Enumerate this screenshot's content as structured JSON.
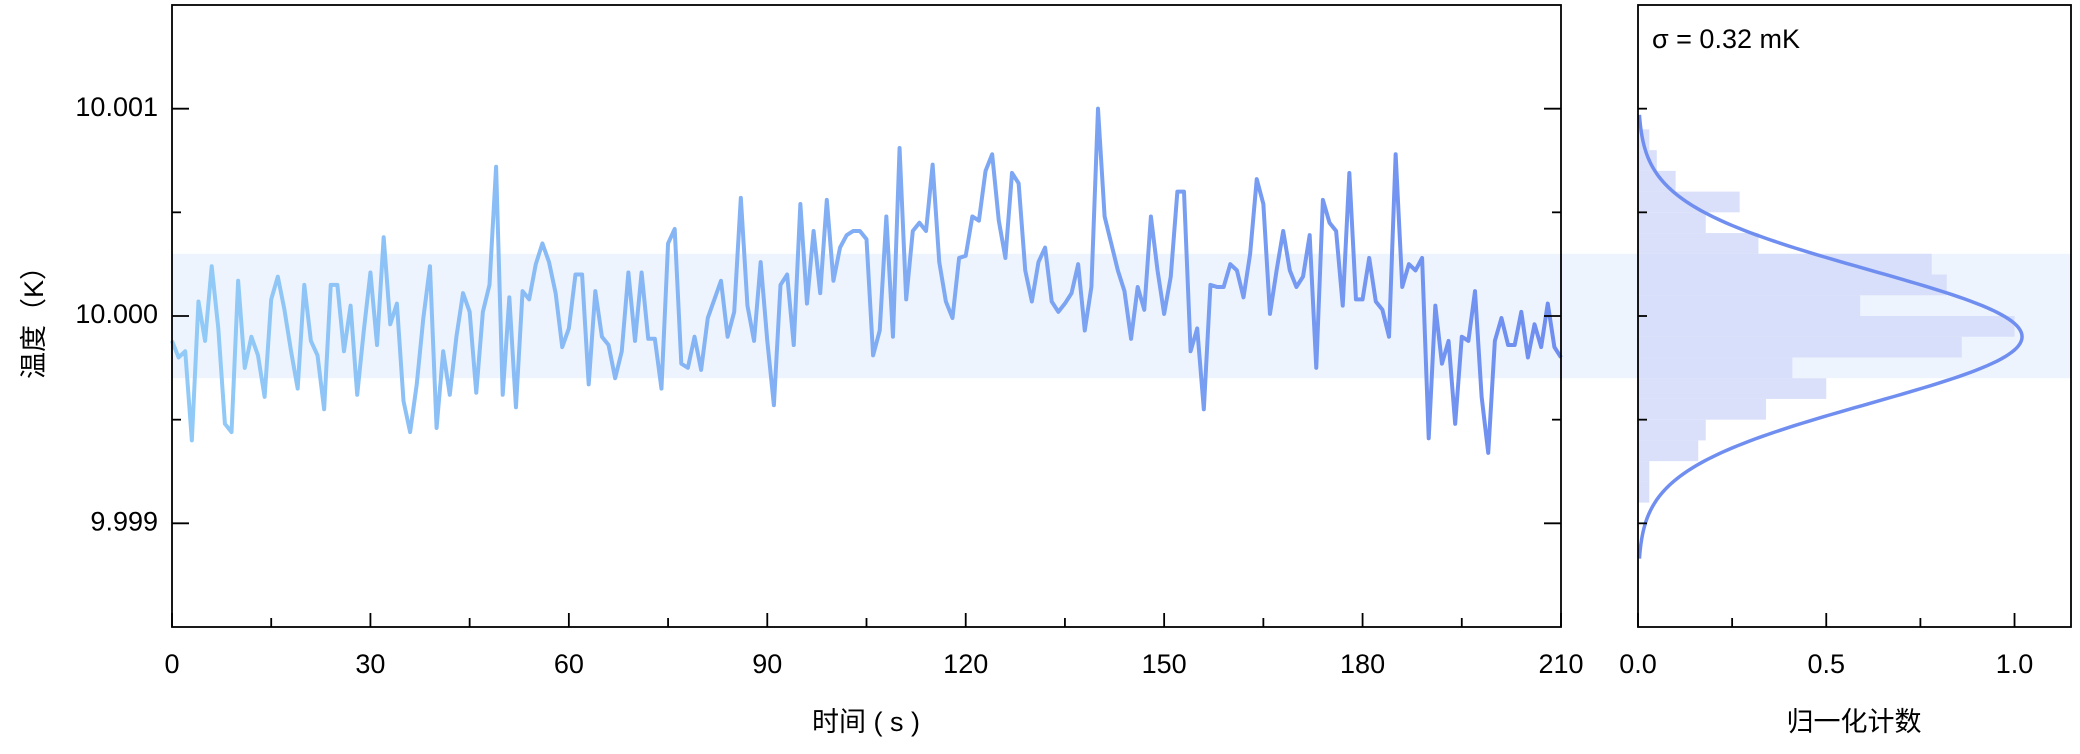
{
  "chart_data": [
    {
      "type": "line",
      "x_label": "时间 ( s )",
      "y_label": "温度（K）",
      "x": [
        0,
        1,
        2,
        3,
        4,
        5,
        6,
        7,
        8,
        9,
        10,
        11,
        12,
        13,
        14,
        15,
        16,
        17,
        18,
        19,
        20,
        21,
        22,
        23,
        24,
        25,
        26,
        27,
        28,
        29,
        30,
        31,
        32,
        33,
        34,
        35,
        36,
        37,
        38,
        39,
        40,
        41,
        42,
        43,
        44,
        45,
        46,
        47,
        48,
        49,
        50,
        51,
        52,
        53,
        54,
        55,
        56,
        57,
        58,
        59,
        60,
        61,
        62,
        63,
        64,
        65,
        66,
        67,
        68,
        69,
        70,
        71,
        72,
        73,
        74,
        75,
        76,
        77,
        78,
        79,
        80,
        81,
        82,
        83,
        84,
        85,
        86,
        87,
        88,
        89,
        90,
        91,
        92,
        93,
        94,
        95,
        96,
        97,
        98,
        99,
        100,
        101,
        102,
        103,
        104,
        105,
        106,
        107,
        108,
        109,
        110,
        111,
        112,
        113,
        114,
        115,
        116,
        117,
        118,
        119,
        120,
        121,
        122,
        123,
        124,
        125,
        126,
        127,
        128,
        129,
        130,
        131,
        132,
        133,
        134,
        135,
        136,
        137,
        138,
        139,
        140,
        141,
        142,
        143,
        144,
        145,
        146,
        147,
        148,
        149,
        150,
        151,
        152,
        153,
        154,
        155,
        156,
        157,
        158,
        159,
        160,
        161,
        162,
        163,
        164,
        165,
        166,
        167,
        168,
        169,
        170,
        171,
        172,
        173,
        174,
        175,
        176,
        177,
        178,
        179,
        180,
        181,
        182,
        183,
        184,
        185,
        186,
        187,
        188,
        189,
        190,
        191,
        192,
        193,
        194,
        195,
        196,
        197,
        198,
        199,
        200,
        201,
        202,
        203,
        204,
        205,
        206,
        207,
        208,
        209,
        210
      ],
      "values": [
        9.99988,
        9.9998,
        9.99983,
        9.9994,
        10.00007,
        9.99988,
        10.00024,
        9.99994,
        9.99948,
        9.99944,
        10.00017,
        9.99975,
        9.9999,
        9.99981,
        9.99961,
        10.00008,
        10.00019,
        10.00003,
        9.99983,
        9.99965,
        10.00015,
        9.99988,
        9.99981,
        9.99955,
        10.00015,
        10.00015,
        9.99983,
        10.00005,
        9.99962,
        9.99993,
        10.00021,
        9.99986,
        10.00038,
        9.99996,
        10.00006,
        9.99959,
        9.99944,
        9.99967,
        9.99999,
        10.00024,
        9.99946,
        9.99983,
        9.99962,
        9.9999,
        10.00011,
        10.00002,
        9.99963,
        10.00002,
        10.00015,
        10.00072,
        9.99962,
        10.00009,
        9.99956,
        10.00012,
        10.00008,
        10.00025,
        10.00035,
        10.00026,
        10.00011,
        9.99985,
        9.99994,
        10.0002,
        10.0002,
        9.99967,
        10.00012,
        9.9999,
        9.99986,
        9.9997,
        9.99983,
        10.00021,
        9.99988,
        10.00021,
        9.99989,
        9.99989,
        9.99965,
        10.00035,
        10.00042,
        9.99977,
        9.99975,
        9.9999,
        9.99974,
        9.99999,
        10.00008,
        10.00017,
        9.9999,
        10.00002,
        10.00057,
        10.00005,
        9.99988,
        10.00026,
        9.99988,
        9.99957,
        10.00015,
        10.0002,
        9.99986,
        10.00054,
        10.00006,
        10.00041,
        10.00011,
        10.00056,
        10.00017,
        10.00033,
        10.00039,
        10.00041,
        10.00041,
        10.00037,
        9.99981,
        9.99993,
        10.00048,
        9.9999,
        10.00081,
        10.00008,
        10.00041,
        10.00045,
        10.00041,
        10.00073,
        10.00026,
        10.00007,
        9.99999,
        10.00028,
        10.00029,
        10.00048,
        10.00046,
        10.0007,
        10.00078,
        10.00046,
        10.00028,
        10.00069,
        10.00064,
        10.00022,
        10.00007,
        10.00026,
        10.00033,
        10.00007,
        10.00002,
        10.00006,
        10.00011,
        10.00025,
        9.99993,
        10.00014,
        10.001,
        10.00048,
        10.00035,
        10.00022,
        10.00012,
        9.99989,
        10.00014,
        10.00003,
        10.00048,
        10.00022,
        10.00001,
        10.00019,
        10.0006,
        10.0006,
        9.99983,
        9.99994,
        9.99955,
        10.00015,
        10.00014,
        10.00014,
        10.00025,
        10.00022,
        10.00009,
        10.0003,
        10.00066,
        10.00054,
        10.00001,
        10.00022,
        10.00041,
        10.00022,
        10.00014,
        10.00019,
        10.00039,
        9.99975,
        10.00056,
        10.00045,
        10.00041,
        10.00005,
        10.00069,
        10.00008,
        10.00008,
        10.00028,
        10.00007,
        10.00003,
        9.9999,
        10.00078,
        10.00014,
        10.00025,
        10.00022,
        10.00028,
        9.99941,
        10.00005,
        9.99977,
        9.99988,
        9.99948,
        9.9999,
        9.99988,
        10.00012,
        9.99961,
        9.99934,
        9.99988,
        9.99999,
        9.99986,
        9.99986,
        10.00002,
        9.9998,
        9.99996,
        9.99985,
        10.00006,
        9.99985,
        9.9998
      ],
      "colors": [
        "#92cbf7",
        "#6f8ef0"
      ],
      "band": [
        9.9997,
        10.0003
      ],
      "band_color": "#eef4fd",
      "xlim": [
        0,
        210
      ],
      "xticks": [
        0,
        30,
        60,
        90,
        120,
        150,
        180,
        210
      ],
      "xminorticks": [
        15,
        45,
        75,
        105,
        135,
        165,
        195
      ],
      "ylim": [
        9.9985,
        10.0015
      ],
      "yticks": [
        9.999,
        {
          "value": 10,
          "label": "10.000"
        },
        10.001
      ],
      "yminorticks": [
        9.9995,
        10.0005
      ]
    },
    {
      "type": "histogram",
      "x_label": "归一化计数",
      "annotation": "σ = 0.32 mK",
      "bins": [
        9.9991,
        9.9992,
        9.9993,
        9.9994,
        9.9995,
        9.9996,
        9.9997,
        9.9998,
        9.9999,
        10.0,
        10.0001,
        10.0002,
        10.0003,
        10.0004,
        10.0005,
        10.0006,
        10.0007,
        10.0008,
        10.0009
      ],
      "values": [
        0.03,
        0.03,
        0.16,
        0.18,
        0.34,
        0.5,
        0.41,
        0.86,
        1.0,
        0.59,
        0.82,
        0.78,
        0.32,
        0.18,
        0.27,
        0.1,
        0.05,
        0.03
      ],
      "color": "#d3dbf9",
      "fit": {
        "mean": 9.9999,
        "sigma": 0.00032,
        "amplitude": 1.02,
        "range": [
          9.99883,
          10.00097
        ],
        "color": "#6f8ef0"
      },
      "xlim": [
        0,
        1.15
      ],
      "xticks": [
        {
          "value": 0,
          "label": "0.0"
        },
        0.5,
        {
          "value": 1,
          "label": "1.0"
        }
      ],
      "xminorticks": [
        0.25,
        0.75
      ],
      "ylim": [
        9.9985,
        10.0015
      ],
      "ytickmarks": [
        9.999,
        9.9995,
        10,
        10.0005,
        10.001
      ]
    }
  ]
}
